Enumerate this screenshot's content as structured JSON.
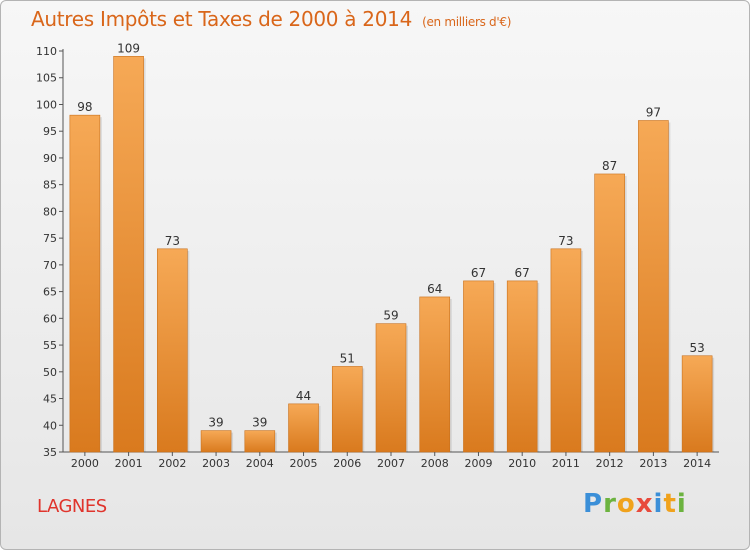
{
  "title": "Autres Impôts et Taxes de 2000 à 2014",
  "unit_note": "(en milliers d'€)",
  "place": "LAGNES",
  "logo": {
    "text": "Proxiti",
    "letters": [
      "P",
      "r",
      "o",
      "x",
      "i",
      "t",
      "i"
    ],
    "colors": [
      "#3b8fd8",
      "#6cb33f",
      "#f0a21c",
      "#e84a3c",
      "#3b8fd8",
      "#f0a21c",
      "#6cb33f"
    ]
  },
  "colors": {
    "bar_top": "#f6a956",
    "bar_bottom": "#d97a1e",
    "bar_edge": "#c8701c",
    "title": "#d9661a",
    "place": "#e0342c"
  },
  "chart_data": {
    "type": "bar",
    "title": "Autres Impôts et Taxes de 2000 à 2014",
    "ylabel": "",
    "xlabel": "",
    "ylim": [
      35,
      110
    ],
    "yticks": [
      35,
      40,
      45,
      50,
      55,
      60,
      65,
      70,
      75,
      80,
      85,
      90,
      95,
      100,
      105,
      110
    ],
    "grid": false,
    "categories": [
      "2000",
      "2001",
      "2002",
      "2003",
      "2004",
      "2005",
      "2006",
      "2007",
      "2008",
      "2009",
      "2010",
      "2011",
      "2012",
      "2013",
      "2014"
    ],
    "values": [
      98,
      109,
      73,
      39,
      39,
      44,
      51,
      59,
      64,
      67,
      67,
      73,
      87,
      97,
      53
    ]
  }
}
